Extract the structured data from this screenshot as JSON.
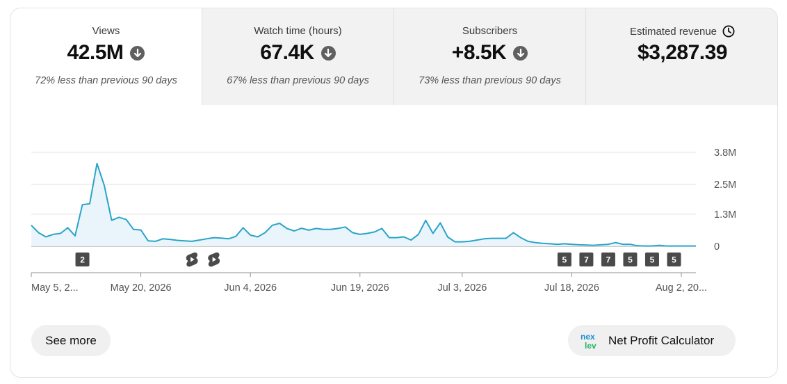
{
  "metrics": [
    {
      "label": "Views",
      "value": "42.5M",
      "trend": "down",
      "comparison": "72% less than previous 90 days",
      "active": true
    },
    {
      "label": "Watch time (hours)",
      "value": "67.4K",
      "trend": "down",
      "comparison": "67% less than previous 90 days",
      "active": false
    },
    {
      "label": "Subscribers",
      "value": "+8.5K",
      "trend": "down",
      "comparison": "73% less than previous 90 days",
      "active": false
    },
    {
      "label": "Estimated revenue",
      "value": "$3,287.39",
      "trend": "pending",
      "comparison": "",
      "active": false
    }
  ],
  "icons": {
    "trend_down": "arrow-down-circle-icon",
    "revenue_status": "clock-icon",
    "shorts": "shorts-icon",
    "npc_logo": "nexlev-logo"
  },
  "colors": {
    "line": "#2aa3c9",
    "area": "#e9f5fb",
    "marker_bg": "#4a4a4a",
    "active_tab": "#ffffff",
    "inactive_tab": "#f2f2f2"
  },
  "chart_data": {
    "type": "area",
    "series": [
      {
        "values": [
          0.85,
          0.55,
          0.38,
          0.48,
          0.52,
          0.75,
          0.42,
          1.68,
          1.72,
          3.35,
          2.45,
          1.05,
          1.17,
          1.08,
          0.68,
          0.66,
          0.22,
          0.2,
          0.3,
          0.28,
          0.24,
          0.22,
          0.2,
          0.25,
          0.3,
          0.35,
          0.33,
          0.3,
          0.4,
          0.75,
          0.45,
          0.38,
          0.55,
          0.85,
          0.93,
          0.72,
          0.62,
          0.73,
          0.65,
          0.72,
          0.68,
          0.68,
          0.72,
          0.78,
          0.55,
          0.48,
          0.52,
          0.58,
          0.72,
          0.35,
          0.35,
          0.38,
          0.25,
          0.48,
          1.05,
          0.52,
          0.95,
          0.38,
          0.18,
          0.18,
          0.2,
          0.25,
          0.3,
          0.32,
          0.32,
          0.32,
          0.55,
          0.35,
          0.2,
          0.15,
          0.12,
          0.1,
          0.08,
          0.1,
          0.08,
          0.06,
          0.05,
          0.04,
          0.06,
          0.08,
          0.15,
          0.08,
          0.08,
          0.02,
          0.01,
          0.01,
          0.04,
          0.01,
          0.01,
          0.01,
          0.01,
          0.01
        ]
      }
    ],
    "x_ticks": [
      "May 5, 2...",
      "May 20, 2026",
      "Jun 4, 2026",
      "Jun 19, 2026",
      "Jul 3, 2026",
      "Jul 18, 2026",
      "Aug 2, 20..."
    ],
    "y_ticks": [
      "3.8M",
      "2.5M",
      "1.3M",
      "0"
    ],
    "y_tick_values": [
      3.8,
      2.5,
      1.3,
      0
    ],
    "ylim": [
      0,
      3.8
    ],
    "y_unit": "M",
    "markers": [
      {
        "day": 7,
        "kind": "count",
        "label": "2"
      },
      {
        "day": 22,
        "kind": "shorts",
        "label": ""
      },
      {
        "day": 25,
        "kind": "shorts",
        "label": ""
      },
      {
        "day": 73,
        "kind": "count",
        "label": "5"
      },
      {
        "day": 76,
        "kind": "count",
        "label": "7"
      },
      {
        "day": 79,
        "kind": "count",
        "label": "7"
      },
      {
        "day": 82,
        "kind": "count",
        "label": "5"
      },
      {
        "day": 85,
        "kind": "count",
        "label": "5"
      },
      {
        "day": 88,
        "kind": "count",
        "label": "5"
      }
    ],
    "grid": true
  },
  "buttons": {
    "see_more": "See more",
    "net_profit_calculator": "Net Profit Calculator"
  }
}
